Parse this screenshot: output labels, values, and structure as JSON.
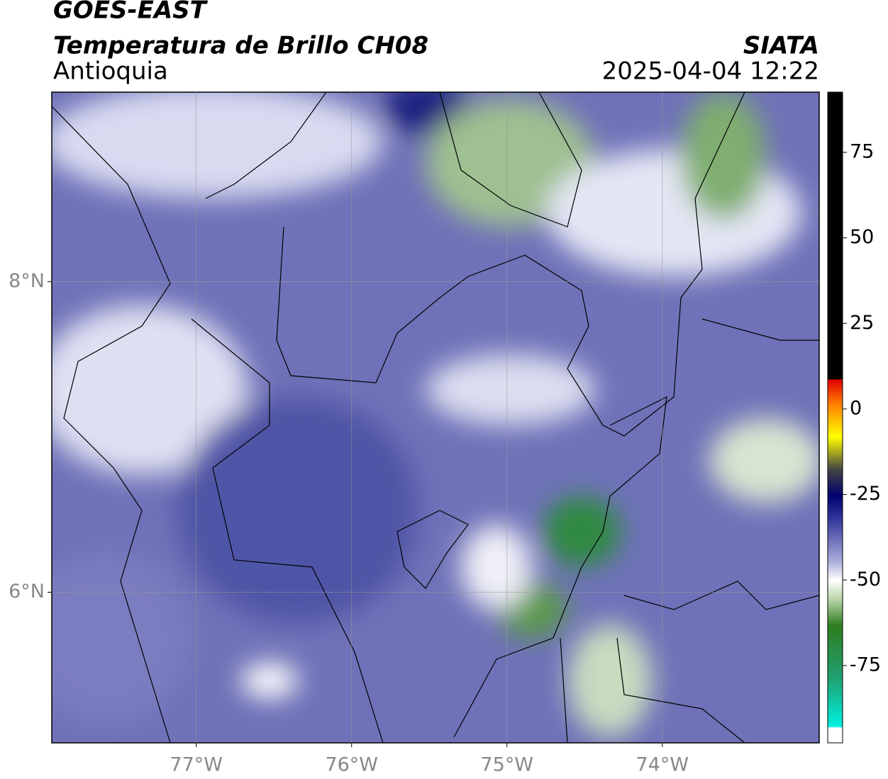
{
  "header": {
    "satellite": "GOES-EAST",
    "product": "Temperatura de Brillo CH08",
    "region": "Antioquia",
    "source": "SIATA",
    "datetime": "2025-04-04 12:22"
  },
  "map": {
    "xlim": [
      -77.93,
      -72.99
    ],
    "ylim": [
      5.03,
      9.22
    ],
    "xticks": [
      {
        "value": -77,
        "label": "77°W"
      },
      {
        "value": -76,
        "label": "76°W"
      },
      {
        "value": -75,
        "label": "75°W"
      },
      {
        "value": -74,
        "label": "74°W"
      }
    ],
    "yticks": [
      {
        "value": 8,
        "label": "8°N"
      },
      {
        "value": 6,
        "label": "6°N"
      }
    ],
    "grid": true
  },
  "colorbar": {
    "lim": [
      -97.6,
      92.6
    ],
    "ticks": [
      75,
      50,
      25,
      0,
      -25,
      -50,
      -75
    ]
  }
}
